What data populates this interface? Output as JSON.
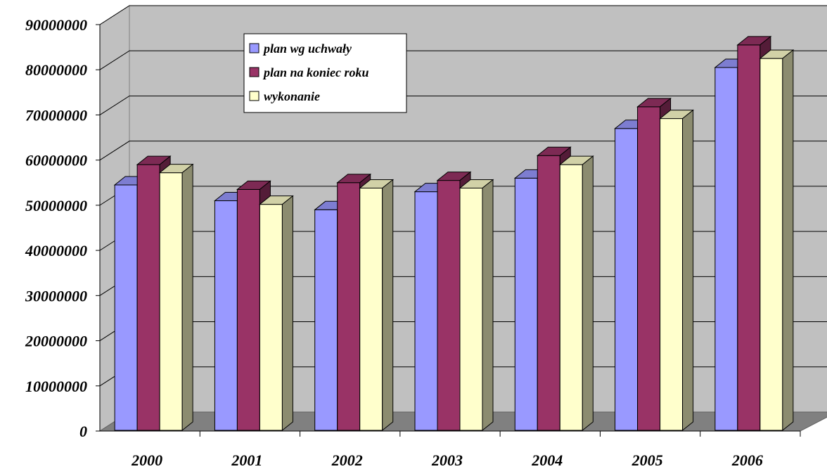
{
  "chart_data": {
    "type": "bar",
    "categories": [
      "2000",
      "2001",
      "2002",
      "2003",
      "2004",
      "2005",
      "2006"
    ],
    "series": [
      {
        "name": "plan wg uchwały",
        "color": "#9999ff",
        "values": [
          54500000,
          51000000,
          49000000,
          53000000,
          56000000,
          67000000,
          80500000
        ]
      },
      {
        "name": "plan na koniec roku",
        "color": "#993366",
        "values": [
          59000000,
          53500000,
          55000000,
          55500000,
          61000000,
          71800000,
          85500000
        ]
      },
      {
        "name": "wykonanie",
        "color": "#ffffcc",
        "values": [
          57200000,
          50200000,
          53800000,
          53800000,
          59000000,
          69200000,
          82500000
        ]
      }
    ],
    "ylim": [
      0,
      90000000
    ],
    "yticks": [
      "0",
      "10000000",
      "20000000",
      "30000000",
      "40000000",
      "50000000",
      "60000000",
      "70000000",
      "80000000",
      "90000000"
    ],
    "grid": true,
    "legend": "top-center",
    "style": "3d-clustered-column",
    "wall_color": "#c0c0c0",
    "floor_color": "#808080"
  }
}
